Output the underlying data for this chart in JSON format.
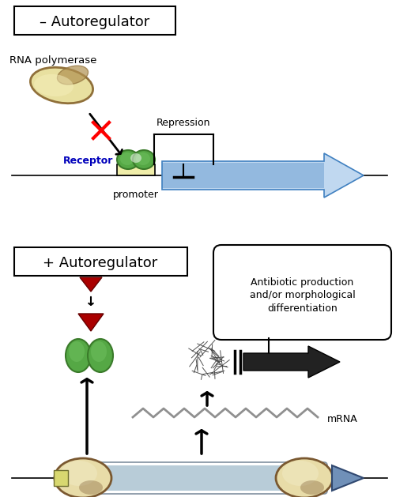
{
  "title_top": "– Autoregulator",
  "title_bottom": "+ Autoregulator",
  "label_rna_pol": "RNA polymerase",
  "label_receptor": "Receptor",
  "label_promoter": "promoter",
  "label_repression": "Repression",
  "label_mrna": "mRNA",
  "label_antibiotic": "Antibiotic production\nand/or morphological\ndifferentiation",
  "bg_color": "#ffffff",
  "receptor_green_dark": "#3a7a2a",
  "receptor_green_light": "#70c060",
  "receptor_green_mid": "#55a845",
  "arrow_blue_dark": "#4080c0",
  "arrow_blue_light": "#c0d8f0",
  "red_tri": "#aa0000",
  "blue_label": "#0000bb",
  "promoter_fill": "#f0eeaa",
  "dna_fill": "#d8cc98",
  "dna_dark": "#7a5830",
  "dna_globe_light": "#e8dca8",
  "cone_blue": "#7090b8",
  "gray_zigzag": "#909090",
  "rna_pol_light": "#e8e0a0",
  "rna_pol_dark": "#90703a"
}
